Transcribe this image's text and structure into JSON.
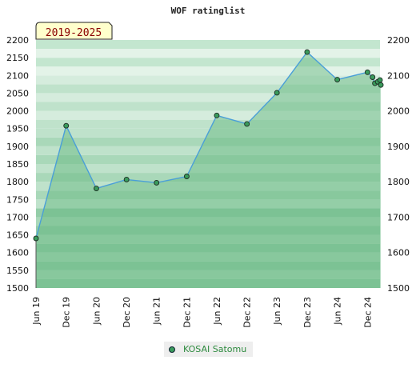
{
  "chart_data": {
    "type": "area",
    "title": "WOF ratinglist",
    "period_badge": "2019-2025",
    "ylim": [
      1500,
      2200
    ],
    "yticks": [
      1500,
      1550,
      1600,
      1650,
      1700,
      1750,
      1800,
      1850,
      1900,
      1950,
      2000,
      2050,
      2100,
      2150,
      2200
    ],
    "yticks_right": [
      1500,
      1600,
      1700,
      1800,
      1900,
      2000,
      2100,
      2200
    ],
    "xlim": [
      "2019-06-01",
      "2025-02-15"
    ],
    "xticks": [
      {
        "date": "2019-06-01",
        "label": "Jun 19"
      },
      {
        "date": "2019-12-01",
        "label": "Dec 19"
      },
      {
        "date": "2020-06-01",
        "label": "Jun 20"
      },
      {
        "date": "2020-12-01",
        "label": "Dec 20"
      },
      {
        "date": "2021-06-01",
        "label": "Jun 21"
      },
      {
        "date": "2021-12-01",
        "label": "Dec 21"
      },
      {
        "date": "2022-06-01",
        "label": "Jun 22"
      },
      {
        "date": "2022-12-01",
        "label": "Dec 22"
      },
      {
        "date": "2023-06-01",
        "label": "Jun 23"
      },
      {
        "date": "2023-12-01",
        "label": "Dec 23"
      },
      {
        "date": "2024-06-01",
        "label": "Jun 24"
      },
      {
        "date": "2024-12-01",
        "label": "Dec 24"
      }
    ],
    "series": [
      {
        "name": "KOSAI Satomu",
        "x": [
          "2019-06-01",
          "2019-12-01",
          "2020-06-01",
          "2020-12-01",
          "2021-06-01",
          "2021-12-01",
          "2022-06-01",
          "2022-12-01",
          "2023-06-01",
          "2023-12-01",
          "2024-06-01",
          "2024-12-01",
          "2025-01-01",
          "2025-01-15",
          "2025-02-01",
          "2025-02-15",
          "2025-02-20"
        ],
        "values": [
          1640,
          1958,
          1781,
          1806,
          1797,
          1815,
          1987,
          1963,
          2051,
          2166,
          2088,
          2109,
          2095,
          2078,
          2082,
          2087,
          2073
        ]
      }
    ],
    "colors": {
      "line": "#4a9fd8",
      "marker": "#3a9b5c",
      "area": "#5fb57c"
    },
    "grid": true,
    "legend": "bottom-center"
  }
}
